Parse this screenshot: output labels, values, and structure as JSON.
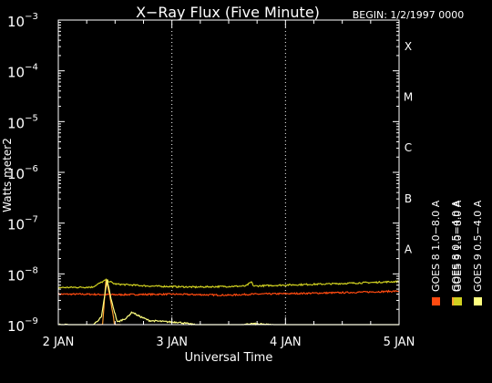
{
  "chart_data": {
    "type": "line",
    "title": "X−Ray Flux (Five Minute)",
    "begin_label": "BEGIN: 1/2/1997 0000",
    "ylabel": "Watts meter2",
    "xlabel": "Universal Time",
    "x_ticks": [
      {
        "day": 0,
        "label": "2 JAN"
      },
      {
        "day": 1,
        "label": "3 JAN"
      },
      {
        "day": 2,
        "label": "4 JAN"
      },
      {
        "day": 3,
        "label": "5 JAN"
      }
    ],
    "xlim_days": [
      0,
      3
    ],
    "y_scale": "log",
    "ylim_exp": [
      -9,
      -3
    ],
    "y_ticks": [
      {
        "exp": -9,
        "base": "10",
        "sup": "−9"
      },
      {
        "exp": -8,
        "base": "10",
        "sup": "−8"
      },
      {
        "exp": -7,
        "base": "10",
        "sup": "−7"
      },
      {
        "exp": -6,
        "base": "10",
        "sup": "−6"
      },
      {
        "exp": -5,
        "base": "10",
        "sup": "−5"
      },
      {
        "exp": -4,
        "base": "10",
        "sup": "−4"
      },
      {
        "exp": -3,
        "base": "10",
        "sup": "−3"
      }
    ],
    "flare_classes": [
      {
        "label": "X",
        "exp": -4
      },
      {
        "label": "M",
        "exp": -5
      },
      {
        "label": "C",
        "exp": -6
      },
      {
        "label": "B",
        "exp": -7
      },
      {
        "label": "A",
        "exp": -8
      }
    ],
    "grid": "vertical dotted lines at day boundaries",
    "legend_placement": "right, vertical",
    "series": [
      {
        "name": "GOES 8  1.0−8.0 A",
        "color": "#ff4a10",
        "points": [
          [
            0,
            -8.4
          ],
          [
            0.2,
            -8.4
          ],
          [
            0.5,
            -8.41
          ],
          [
            1.0,
            -8.4
          ],
          [
            1.5,
            -8.42
          ],
          [
            1.7,
            -8.4
          ],
          [
            2.0,
            -8.39
          ],
          [
            2.5,
            -8.37
          ],
          [
            3.0,
            -8.34
          ]
        ]
      },
      {
        "name": "GOES 8  0.5−4.0 A",
        "color": "#ffa030",
        "points": [
          [
            0.34,
            -9.05
          ],
          [
            0.39,
            -9.0
          ],
          [
            0.42,
            -8.1
          ],
          [
            0.45,
            -8.4
          ],
          [
            0.5,
            -9.05
          ],
          [
            0.55,
            -9.05
          ]
        ]
      },
      {
        "name": "GOES 9  1.0−8.0 A",
        "color": "#d0d020",
        "points": [
          [
            0,
            -8.27
          ],
          [
            0.3,
            -8.26
          ],
          [
            0.42,
            -8.12
          ],
          [
            0.5,
            -8.2
          ],
          [
            0.8,
            -8.24
          ],
          [
            1.2,
            -8.26
          ],
          [
            1.65,
            -8.24
          ],
          [
            1.7,
            -8.16
          ],
          [
            1.72,
            -8.24
          ],
          [
            2.0,
            -8.22
          ],
          [
            2.5,
            -8.19
          ],
          [
            3.0,
            -8.15
          ]
        ]
      },
      {
        "name": "GOES 9  0.5−4.0 A",
        "color": "#ffff80",
        "points": [
          [
            0,
            -9.0
          ],
          [
            0.3,
            -9.02
          ],
          [
            0.38,
            -8.85
          ],
          [
            0.43,
            -8.12
          ],
          [
            0.47,
            -8.55
          ],
          [
            0.52,
            -8.95
          ],
          [
            0.6,
            -8.87
          ],
          [
            0.65,
            -8.75
          ],
          [
            0.7,
            -8.82
          ],
          [
            0.8,
            -8.92
          ],
          [
            1.0,
            -8.95
          ],
          [
            1.05,
            -8.95
          ],
          [
            1.25,
            -9.02
          ],
          [
            1.6,
            -9.02
          ],
          [
            1.7,
            -8.98
          ],
          [
            2.0,
            -9.02
          ],
          [
            2.5,
            -9.02
          ],
          [
            3.0,
            -9.04
          ]
        ]
      }
    ]
  }
}
